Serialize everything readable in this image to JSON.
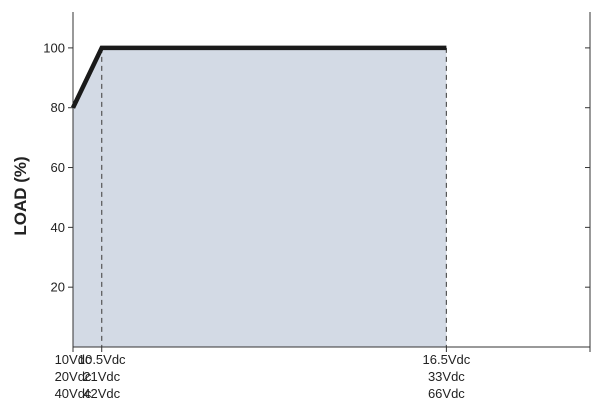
{
  "chart_data": {
    "type": "area",
    "title": "",
    "ylabel": "LOAD (%)",
    "xlabel": "",
    "xlim": [
      10,
      19
    ],
    "ylim": [
      0,
      112
    ],
    "yticks": [
      20,
      40,
      60,
      80,
      100
    ],
    "grid": false,
    "x_reference_lines": [
      10.5,
      16.5
    ],
    "series": [
      {
        "values": [
          {
            "x": 10,
            "y": 80
          },
          {
            "x": 10.5,
            "y": 100
          },
          {
            "x": 16.5,
            "y": 100
          }
        ]
      }
    ],
    "x_tick_groups": [
      {
        "x": 10,
        "labels": [
          "10Vdc",
          "20Vdc",
          "40Vdc"
        ]
      },
      {
        "x": 10.5,
        "labels": [
          "10.5Vdc",
          "21Vdc",
          "42Vdc"
        ]
      },
      {
        "x": 16.5,
        "labels": [
          "16.5Vdc",
          "33Vdc",
          "66Vdc"
        ]
      }
    ],
    "colors": {
      "fill": "#d3dae5",
      "line": "#1a1a1a",
      "axis": "#333333"
    }
  }
}
